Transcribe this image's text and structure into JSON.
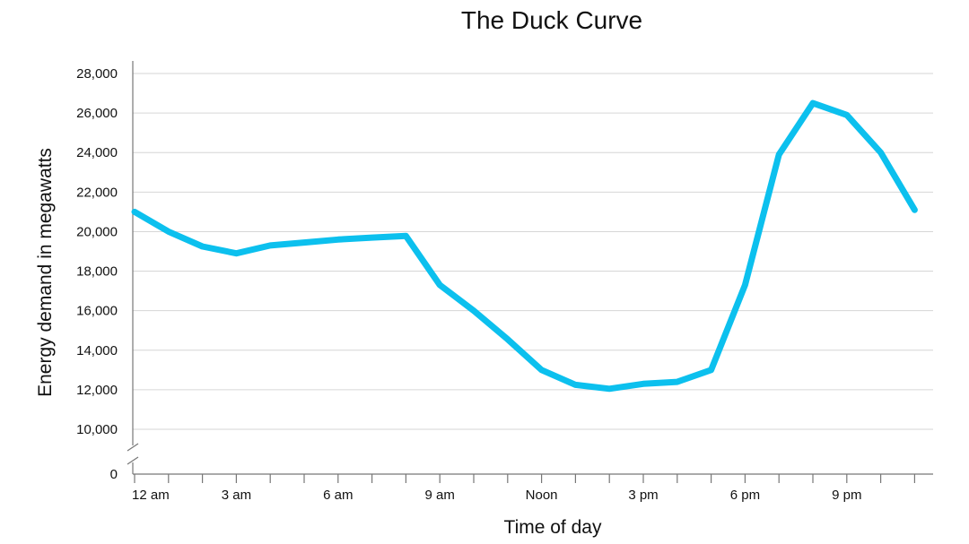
{
  "chart_data": {
    "type": "line",
    "title": "The Duck Curve",
    "xlabel": "Time of day",
    "ylabel": "Energy demand in megawatts",
    "x_tick_labels": [
      "12 am",
      "3 am",
      "6 am",
      "9 am",
      "Noon",
      "3 pm",
      "6 pm",
      "9 pm"
    ],
    "x_tick_hours": [
      0,
      3,
      6,
      9,
      12,
      15,
      18,
      21
    ],
    "x_minor_ticks_every_hours": 1,
    "xlim": [
      0,
      23
    ],
    "y_tick_labels": [
      "0",
      "10,000",
      "12,000",
      "14,000",
      "16,000",
      "18,000",
      "20,000",
      "22,000",
      "24,000",
      "26,000",
      "28,000"
    ],
    "y_ticks": [
      10000,
      12000,
      14000,
      16000,
      18000,
      20000,
      22000,
      24000,
      26000,
      28000
    ],
    "ylim": [
      10000,
      28000
    ],
    "y_axis_break": true,
    "grid": "horizontal",
    "legend": "none",
    "series": [
      {
        "color": "#0cc0ee",
        "x": [
          0,
          1,
          2,
          3,
          4,
          5,
          6,
          7,
          8,
          9,
          10,
          11,
          12,
          13,
          14,
          15,
          16,
          17,
          18,
          19,
          20,
          21,
          22,
          23
        ],
        "values": [
          21000,
          20000,
          19250,
          18900,
          19300,
          19450,
          19600,
          19700,
          19780,
          17300,
          16000,
          14550,
          13000,
          12250,
          12050,
          12300,
          12400,
          13000,
          17300,
          23900,
          26500,
          25900,
          24000,
          21100
        ]
      }
    ]
  }
}
